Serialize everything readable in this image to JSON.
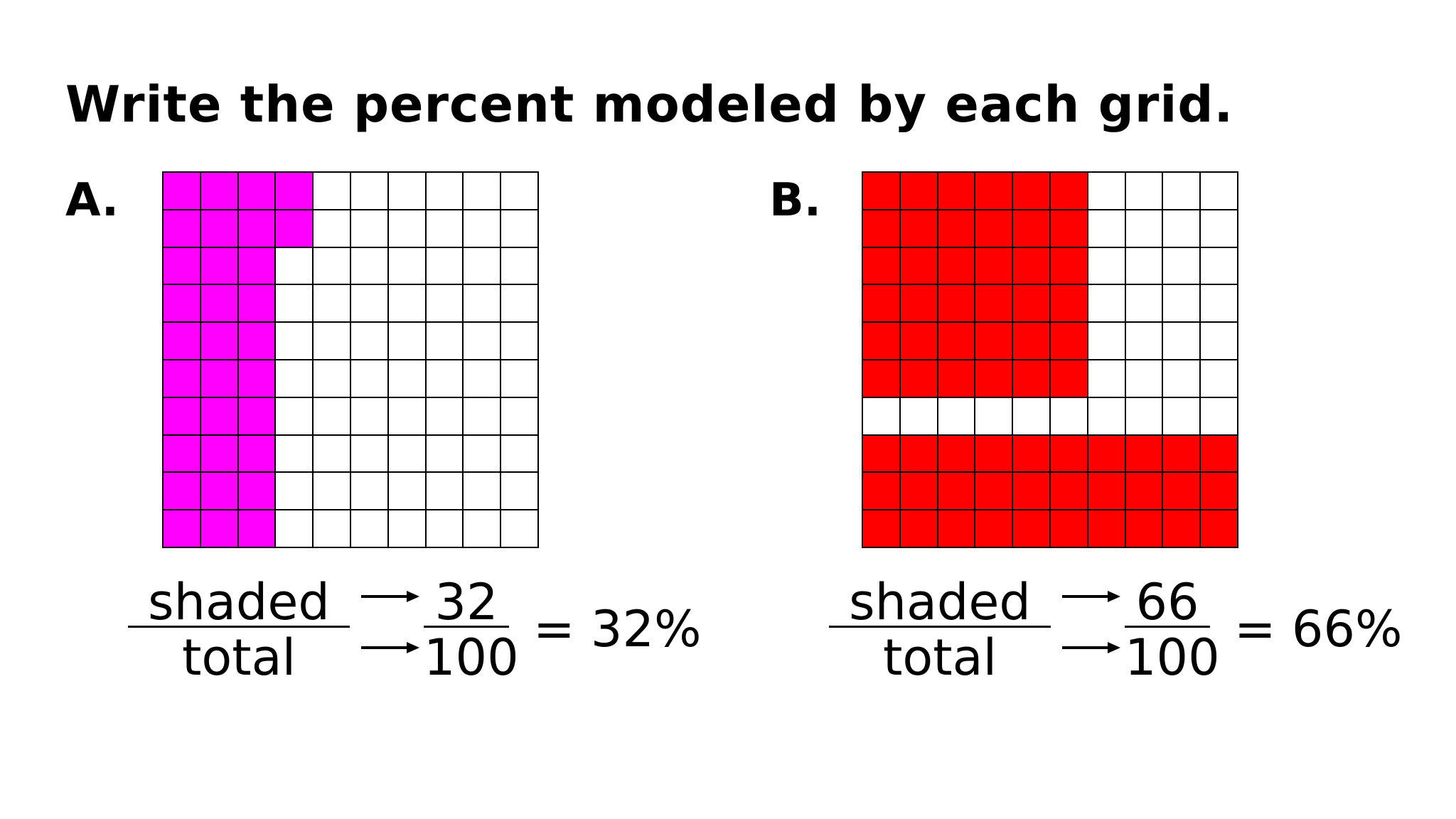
{
  "title": "Write the percent modeled by each grid.",
  "panels": [
    {
      "label": "A.",
      "shade_color": "#ff00ff",
      "grid": {
        "rows": 10,
        "cols": 10,
        "shaded_count": 32
      },
      "equation": {
        "word_numerator": "shaded",
        "word_denominator": "total",
        "numerator": "32",
        "denominator": "100",
        "result": "= 32%"
      }
    },
    {
      "label": "B.",
      "shade_color": "#ff0000",
      "grid": {
        "rows": 10,
        "cols": 10,
        "shaded_count": 66
      },
      "equation": {
        "word_numerator": "shaded",
        "word_denominator": "total",
        "numerator": "66",
        "denominator": "100",
        "result": "= 66%"
      }
    }
  ]
}
